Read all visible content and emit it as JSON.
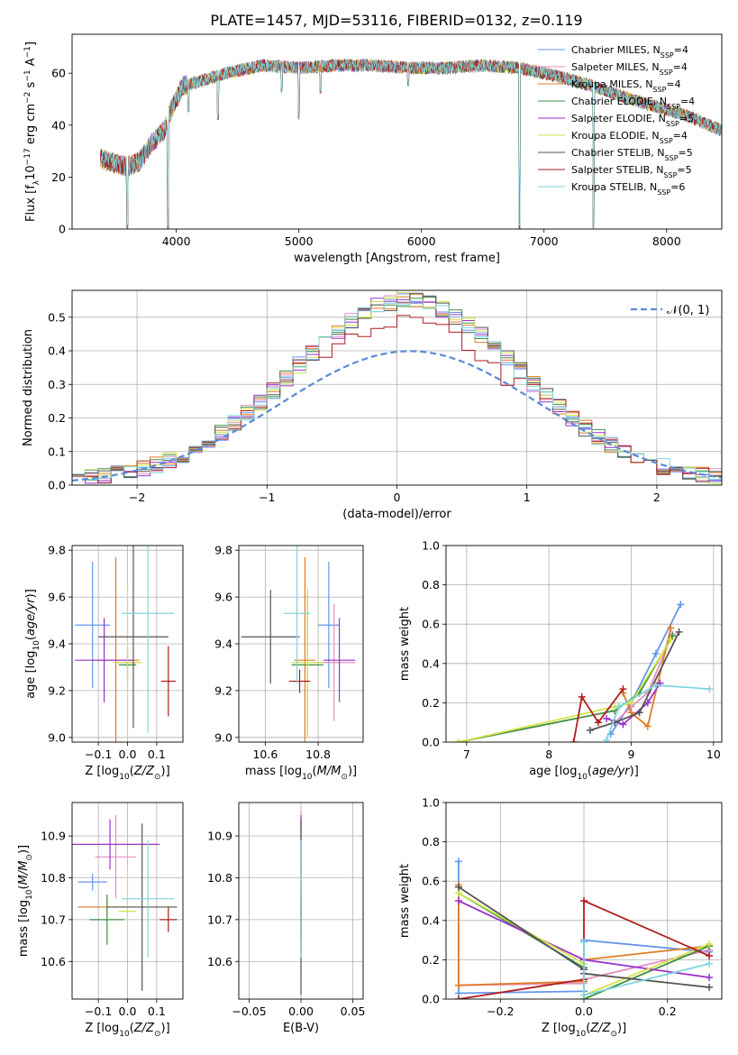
{
  "figure": {
    "title": "PLATE=1457, MJD=53116, FIBERID=0132, z=0.119"
  },
  "palette": [
    "#6495ed",
    "#e58fc0",
    "#e07b24",
    "#3e8f3e",
    "#9932cc",
    "#d4e346",
    "#555555",
    "#b01d1d",
    "#7fd6dd"
  ],
  "chart_data": [
    {
      "id": "spectrum",
      "type": "line",
      "title": "",
      "xlabel": "wavelength [Angstrom, rest frame]",
      "ylabel": "Flux [f_λ10^-17 erg cm^-2 s^-1 A^-1]",
      "xlim": [
        3150,
        8450
      ],
      "ylim": [
        0,
        75
      ],
      "xticks": [
        4000,
        5000,
        6000,
        7000,
        8000
      ],
      "yticks": [
        0,
        20,
        40,
        60
      ],
      "grid": false,
      "legend_position": "upper right",
      "x_range": [
        3380,
        8450
      ],
      "continuum": [
        [
          3380,
          27
        ],
        [
          3600,
          24
        ],
        [
          3700,
          26
        ],
        [
          3800,
          33
        ],
        [
          3900,
          38
        ],
        [
          3950,
          45
        ],
        [
          4050,
          55
        ],
        [
          4200,
          57
        ],
        [
          4400,
          60
        ],
        [
          4700,
          63
        ],
        [
          5000,
          62
        ],
        [
          5300,
          63
        ],
        [
          5600,
          63
        ],
        [
          5900,
          62
        ],
        [
          6200,
          62
        ],
        [
          6500,
          63
        ],
        [
          6800,
          62
        ],
        [
          7100,
          59
        ],
        [
          7400,
          55
        ],
        [
          7700,
          50
        ],
        [
          8000,
          46
        ],
        [
          8200,
          43
        ],
        [
          8450,
          38
        ]
      ],
      "dips": [
        [
          3600,
          0,
          0.02
        ],
        [
          3933,
          0,
          0.03
        ],
        [
          4101,
          45,
          0.4
        ],
        [
          4340,
          42,
          0.4
        ],
        [
          4861,
          52,
          0.4
        ],
        [
          5000,
          42,
          0.2
        ],
        [
          5175,
          52,
          0.4
        ],
        [
          5893,
          55,
          0.4
        ],
        [
          6800,
          0,
          0.02
        ],
        [
          7405,
          0,
          0.02
        ]
      ],
      "series": [
        {
          "name": "Chabrier MILES, N",
          "sub": "SSP",
          "n": "=4"
        },
        {
          "name": "Salpeter MILES, N",
          "sub": "SSP",
          "n": "=4"
        },
        {
          "name": "Kroupa MILES, N",
          "sub": "SSP",
          "n": "=4"
        },
        {
          "name": "Chabrier ELODIE, N",
          "sub": "SSP",
          "n": "=4"
        },
        {
          "name": "Salpeter ELODIE, N",
          "sub": "SSP",
          "n": "=5"
        },
        {
          "name": "Kroupa ELODIE, N",
          "sub": "SSP",
          "n": "=4"
        },
        {
          "name": "Chabrier STELIB, N",
          "sub": "SSP",
          "n": "=5"
        },
        {
          "name": "Salpeter STELIB, N",
          "sub": "SSP",
          "n": "=5"
        },
        {
          "name": "Kroupa STELIB, N",
          "sub": "SSP",
          "n": "=6"
        }
      ]
    },
    {
      "id": "residuals",
      "type": "histogram",
      "xlabel": "(data-model)/error",
      "ylabel": "Normed distribution",
      "xlim": [
        -2.5,
        2.5
      ],
      "ylim": [
        0,
        0.58
      ],
      "xticks": [
        -2,
        -1,
        0,
        1,
        2
      ],
      "yticks": [
        0.0,
        0.1,
        0.2,
        0.3,
        0.4,
        0.5
      ],
      "grid": true,
      "legend_position": "upper right",
      "reference": {
        "label": "𝒩(0, 1)",
        "mu": 0.1,
        "sigma": 1.0
      },
      "bin_width": 0.1
    },
    {
      "id": "age_vs_Z",
      "type": "errorbar",
      "xlabel": "Z [log10(Z/Z⊙)]",
      "ylabel": "age  [log10(age/yr)]",
      "xlim": [
        -0.19,
        0.19
      ],
      "ylim": [
        8.98,
        9.82
      ],
      "xticks": [
        -0.1,
        0.0,
        0.1
      ],
      "xtick_labels": [
        "−0.1",
        "0.0",
        "0.1"
      ],
      "yticks": [
        9.0,
        9.2,
        9.4,
        9.6,
        9.8
      ],
      "grid": true,
      "points": [
        {
          "x": -0.12,
          "xerr": 0.06,
          "y": 9.48,
          "yerr": 0.27
        },
        {
          "x": 0.0,
          "xerr": 0.04,
          "y": 9.32,
          "yerr": 0.02
        },
        {
          "x": -0.04,
          "xerr": 0.08,
          "y": 9.33,
          "yerr": 0.44
        },
        {
          "x": 0.0,
          "xerr": 0.03,
          "y": 9.31,
          "yerr": 0.08
        },
        {
          "x": -0.08,
          "xerr": 0.1,
          "y": 9.33,
          "yerr": 0.18
        },
        {
          "x": 0.0,
          "xerr": 0.05,
          "y": 9.32,
          "yerr": 0.32
        },
        {
          "x": 0.02,
          "xerr": 0.12,
          "y": 9.43,
          "yerr": 0.39
        },
        {
          "x": 0.14,
          "xerr": 0.025,
          "y": 9.24,
          "yerr": 0.15
        },
        {
          "x": 0.07,
          "xerr": 0.09,
          "y": 9.53,
          "yerr": 0.51
        }
      ]
    },
    {
      "id": "age_vs_mass",
      "type": "errorbar",
      "xlabel": "mass [log10(M/M⊙)]",
      "ylabel": "",
      "xlim": [
        10.5,
        10.97
      ],
      "ylim": [
        8.98,
        9.82
      ],
      "xticks": [
        10.6,
        10.8
      ],
      "yticks": [
        9.0,
        9.2,
        9.4,
        9.6,
        9.8
      ],
      "grid": true,
      "points": [
        {
          "x": 10.84,
          "xerr": 0.04,
          "y": 9.48,
          "yerr": 0.27
        },
        {
          "x": 10.86,
          "xerr": 0.08,
          "y": 9.32,
          "yerr": 0.25
        },
        {
          "x": 10.75,
          "xerr": 0.04,
          "y": 9.33,
          "yerr": 0.44
        },
        {
          "x": 10.76,
          "xerr": 0.06,
          "y": 9.31,
          "yerr": 0.3
        },
        {
          "x": 10.88,
          "xerr": 0.06,
          "y": 9.33,
          "yerr": 0.18
        },
        {
          "x": 10.76,
          "xerr": 0.06,
          "y": 9.32,
          "yerr": 0.32
        },
        {
          "x": 10.62,
          "xerr": 0.11,
          "y": 9.43,
          "yerr": 0.2
        },
        {
          "x": 10.73,
          "xerr": 0.04,
          "y": 9.24,
          "yerr": 0.05
        },
        {
          "x": 10.72,
          "xerr": 0.05,
          "y": 9.53,
          "yerr": 0.3
        }
      ]
    },
    {
      "id": "mass_weight_vs_age",
      "type": "line",
      "xlabel": "age  [log10(age/yr)]",
      "ylabel": "mass weight",
      "xlim": [
        6.75,
        10.1
      ],
      "ylim": [
        0,
        1.0
      ],
      "xticks": [
        7,
        8,
        9,
        10
      ],
      "yticks": [
        0.0,
        0.2,
        0.4,
        0.6,
        0.8,
        1.0
      ],
      "grid": true,
      "series": [
        {
          "x": [
            8.75,
            9.0,
            9.3,
            9.6
          ],
          "y": [
            0.04,
            0.2,
            0.45,
            0.7
          ]
        },
        {
          "x": [
            8.8,
            9.0,
            9.2,
            9.5
          ],
          "y": [
            0.1,
            0.18,
            0.25,
            0.55
          ]
        },
        {
          "x": [
            8.9,
            9.0,
            9.2,
            9.48
          ],
          "y": [
            0.25,
            0.15,
            0.08,
            0.58
          ]
        },
        {
          "x": [
            6.9,
            8.8,
            9.1,
            9.5
          ],
          "y": [
            0.0,
            0.16,
            0.25,
            0.54
          ]
        },
        {
          "x": [
            8.7,
            8.9,
            9.2,
            9.35
          ],
          "y": [
            0.12,
            0.09,
            0.2,
            0.3
          ]
        },
        {
          "x": [
            6.9,
            8.8,
            9.0,
            9.48
          ],
          "y": [
            0.0,
            0.18,
            0.2,
            0.52
          ]
        },
        {
          "x": [
            8.5,
            8.8,
            9.1,
            9.58
          ],
          "y": [
            0.06,
            0.1,
            0.15,
            0.56
          ]
        },
        {
          "x": [
            8.3,
            8.4,
            8.6,
            8.9
          ],
          "y": [
            0.0,
            0.23,
            0.1,
            0.27
          ]
        },
        {
          "x": [
            8.7,
            8.85,
            9.3,
            9.95
          ],
          "y": [
            0.01,
            0.18,
            0.29,
            0.27
          ]
        }
      ]
    },
    {
      "id": "mass_vs_Z",
      "type": "errorbar",
      "xlabel": "Z [log10(Z/Z⊙)]",
      "ylabel": "mass [log10(M/M⊙)]",
      "xlim": [
        -0.19,
        0.19
      ],
      "ylim": [
        10.51,
        10.98
      ],
      "xticks": [
        -0.1,
        0.0,
        0.1
      ],
      "xtick_labels": [
        "−0.1",
        "0.0",
        "0.1"
      ],
      "yticks": [
        10.6,
        10.7,
        10.8,
        10.9
      ],
      "grid": true,
      "points": [
        {
          "x": -0.12,
          "xerr": 0.05,
          "y": 10.79,
          "yerr": 0.02
        },
        {
          "x": -0.04,
          "xerr": 0.07,
          "y": 10.85,
          "yerr": 0.1
        },
        {
          "x": -0.07,
          "xerr": 0.1,
          "y": 10.73,
          "yerr": 0.02
        },
        {
          "x": -0.07,
          "xerr": 0.06,
          "y": 10.7,
          "yerr": 0.06
        },
        {
          "x": -0.06,
          "xerr": 0.17,
          "y": 10.88,
          "yerr": 0.06
        },
        {
          "x": 0.0,
          "xerr": 0.03,
          "y": 10.72,
          "yerr": 0.1
        },
        {
          "x": 0.05,
          "xerr": 0.12,
          "y": 10.73,
          "yerr": 0.2
        },
        {
          "x": 0.14,
          "xerr": 0.03,
          "y": 10.7,
          "yerr": 0.03
        },
        {
          "x": 0.07,
          "xerr": 0.09,
          "y": 10.75,
          "yerr": 0.14
        }
      ]
    },
    {
      "id": "mass_vs_ebv",
      "type": "errorbar",
      "xlabel": "E(B-V)",
      "ylabel": "",
      "xlim": [
        -0.06,
        0.06
      ],
      "ylim": [
        10.51,
        10.98
      ],
      "xticks": [
        -0.05,
        0.0,
        0.05
      ],
      "xtick_labels": [
        "−0.05",
        "0.00",
        "0.05"
      ],
      "yticks": [
        10.6,
        10.7,
        10.8,
        10.9
      ],
      "grid": true,
      "points": [
        {
          "x": 0.0,
          "xerr": 0.0,
          "y": 10.79,
          "yerr": 0.1
        },
        {
          "x": 0.0,
          "xerr": 0.0,
          "y": 10.85,
          "yerr": 0.11
        },
        {
          "x": 0.0,
          "xerr": 0.0,
          "y": 10.73,
          "yerr": 0.1
        },
        {
          "x": 0.0,
          "xerr": 0.0,
          "y": 10.7,
          "yerr": 0.08
        },
        {
          "x": 0.0,
          "xerr": 0.0,
          "y": 10.88,
          "yerr": 0.07
        },
        {
          "x": 0.0,
          "xerr": 0.0,
          "y": 10.72,
          "yerr": 0.16
        },
        {
          "x": 0.0,
          "xerr": 0.0,
          "y": 10.73,
          "yerr": 0.21
        },
        {
          "x": 0.0,
          "xerr": 0.0,
          "y": 10.7,
          "yerr": 0.05
        },
        {
          "x": 0.0,
          "xerr": 0.0,
          "y": 10.75,
          "yerr": 0.14
        }
      ]
    },
    {
      "id": "mass_weight_vs_Z",
      "type": "line",
      "xlabel": "Z [log10(Z/Z⊙)]",
      "ylabel": "mass weight",
      "xlim": [
        -0.33,
        0.33
      ],
      "ylim": [
        0,
        1.0
      ],
      "xticks": [
        -0.2,
        0.0,
        0.2
      ],
      "xtick_labels": [
        "−0.2",
        "0.0",
        "0.2"
      ],
      "yticks": [
        0.0,
        0.2,
        0.4,
        0.6,
        0.8,
        1.0
      ],
      "grid": true,
      "series": [
        {
          "x": [
            -0.3,
            -0.3,
            0.0,
            0.0,
            0.3
          ],
          "y": [
            0.7,
            0.03,
            0.04,
            0.3,
            0.24
          ]
        },
        {
          "x": [
            -0.3,
            -0.3,
            0.0,
            0.0,
            0.3
          ],
          "y": [
            0.57,
            0.07,
            0.08,
            0.1,
            0.25
          ]
        },
        {
          "x": [
            -0.3,
            -0.3,
            0.0,
            0.0,
            0.3
          ],
          "y": [
            0.58,
            0.07,
            0.09,
            0.2,
            0.27
          ]
        },
        {
          "x": [
            -0.3,
            0.0,
            0.0,
            0.3
          ],
          "y": [
            0.54,
            0.16,
            0.0,
            0.27
          ]
        },
        {
          "x": [
            -0.3,
            0.0,
            0.0,
            0.3
          ],
          "y": [
            0.5,
            0.2,
            0.2,
            0.11
          ]
        },
        {
          "x": [
            -0.3,
            0.0,
            0.0,
            0.3
          ],
          "y": [
            0.54,
            0.18,
            0.02,
            0.28
          ]
        },
        {
          "x": [
            -0.3,
            0.0,
            0.0,
            0.3
          ],
          "y": [
            0.57,
            0.15,
            0.13,
            0.06
          ]
        },
        {
          "x": [
            -0.3,
            0.0,
            0.0,
            0.3
          ],
          "y": [
            0.0,
            0.1,
            0.5,
            0.22
          ]
        },
        {
          "x": [
            0.0,
            0.0,
            0.3
          ],
          "y": [
            0.29,
            0.02,
            0.18
          ]
        }
      ]
    }
  ]
}
